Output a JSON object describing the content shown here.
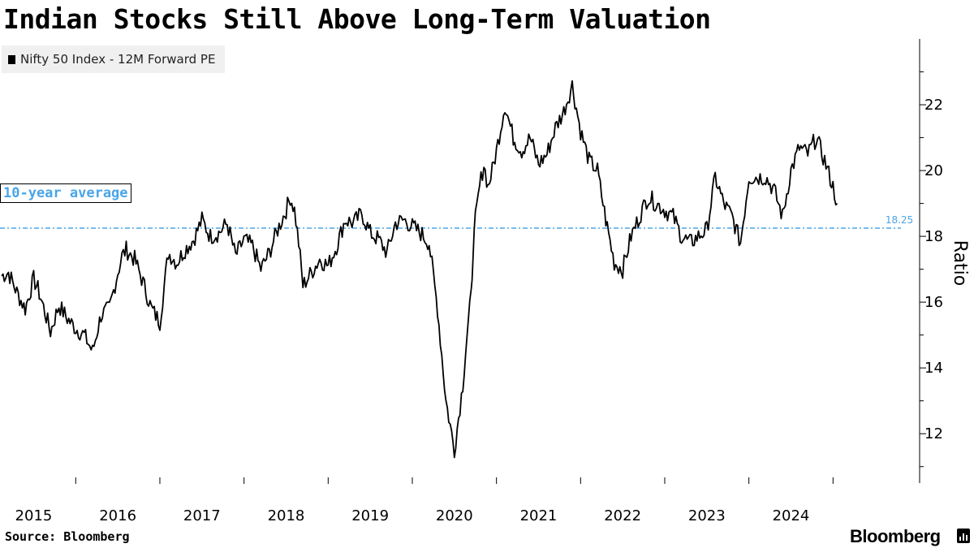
{
  "title": "Indian Stocks Still Above Long-Term Valuation",
  "legend": {
    "label": "Nifty 50 Index - 12M Forward PE",
    "color": "#000000"
  },
  "source": "Source: Bloomberg",
  "brand": "Bloomberg",
  "chart_data": {
    "type": "line",
    "title": "Indian Stocks Still Above Long-Term Valuation",
    "xlabel": "",
    "ylabel": "Ratio",
    "xlim": [
      2014.6,
      2025.5
    ],
    "ylim": [
      10.5,
      24.0
    ],
    "x_ticks": [
      2015,
      2016,
      2017,
      2018,
      2019,
      2020,
      2021,
      2022,
      2023,
      2024
    ],
    "y_ticks": [
      12,
      14,
      16,
      18,
      20,
      22
    ],
    "grid": false,
    "reference_line": {
      "label": "10-year average",
      "value": 18.25,
      "value_label": "18.25",
      "color": "#4aa5e8"
    },
    "series": [
      {
        "name": "Nifty 50 Index - 12M Forward PE",
        "color": "#000000",
        "x": [
          2014.62,
          2014.7,
          2014.8,
          2014.9,
          2015.0,
          2015.05,
          2015.1,
          2015.2,
          2015.3,
          2015.4,
          2015.5,
          2015.6,
          2015.7,
          2015.8,
          2015.9,
          2016.0,
          2016.05,
          2016.1,
          2016.2,
          2016.3,
          2016.4,
          2016.5,
          2016.6,
          2016.7,
          2016.8,
          2016.9,
          2017.0,
          2017.1,
          2017.2,
          2017.3,
          2017.4,
          2017.5,
          2017.6,
          2017.7,
          2017.8,
          2017.9,
          2018.0,
          2018.05,
          2018.1,
          2018.15,
          2018.2,
          2018.3,
          2018.4,
          2018.5,
          2018.6,
          2018.7,
          2018.8,
          2018.9,
          2019.0,
          2019.1,
          2019.2,
          2019.3,
          2019.4,
          2019.5,
          2019.6,
          2019.7,
          2019.8,
          2019.9,
          2020.0,
          2020.1,
          2020.15,
          2020.2,
          2020.22,
          2020.25,
          2020.3,
          2020.35,
          2020.4,
          2020.45,
          2020.5,
          2020.55,
          2020.6,
          2020.7,
          2020.8,
          2020.9,
          2021.0,
          2021.1,
          2021.2,
          2021.3,
          2021.4,
          2021.5,
          2021.6,
          2021.7,
          2021.8,
          2021.9,
          2022.0,
          2022.1,
          2022.2,
          2022.3,
          2022.4,
          2022.5,
          2022.6,
          2022.7,
          2022.8,
          2022.9,
          2023.0,
          2023.1,
          2023.2,
          2023.3,
          2023.4,
          2023.5,
          2023.6,
          2023.7,
          2023.8,
          2023.9,
          2024.0,
          2024.1,
          2024.2,
          2024.3,
          2024.4,
          2024.5,
          2024.55
        ],
        "values": [
          16.8,
          16.9,
          16.3,
          15.8,
          16.7,
          16.4,
          16.0,
          15.1,
          15.9,
          15.5,
          15.2,
          15.0,
          14.5,
          15.6,
          15.8,
          16.9,
          17.4,
          17.6,
          17.3,
          16.6,
          15.8,
          15.4,
          17.5,
          17.2,
          17.6,
          17.9,
          18.5,
          18.0,
          18.1,
          18.4,
          17.4,
          17.9,
          17.7,
          17.0,
          17.5,
          18.2,
          18.8,
          19.2,
          18.8,
          17.8,
          16.5,
          16.9,
          17.3,
          17.1,
          17.7,
          18.5,
          18.4,
          18.7,
          18.1,
          17.9,
          17.5,
          18.4,
          18.5,
          18.3,
          18.1,
          17.8,
          15.8,
          13.0,
          11.5,
          13.5,
          15.0,
          16.2,
          17.5,
          18.5,
          19.5,
          20.2,
          19.5,
          20.0,
          20.6,
          21.3,
          22.0,
          21.0,
          20.6,
          21.0,
          20.2,
          20.5,
          21.3,
          21.8,
          22.6,
          21.2,
          20.3,
          20.0,
          18.5,
          17.2,
          17.0,
          18.0,
          18.6,
          19.2,
          19.0,
          18.8,
          18.6,
          18.0,
          17.8,
          18.0,
          18.2,
          19.8,
          19.0,
          18.6,
          17.8,
          19.8,
          19.8,
          19.8,
          19.4,
          18.6,
          20.0,
          20.7,
          20.5,
          21.0,
          20.3,
          19.5,
          19.0
        ]
      }
    ]
  }
}
